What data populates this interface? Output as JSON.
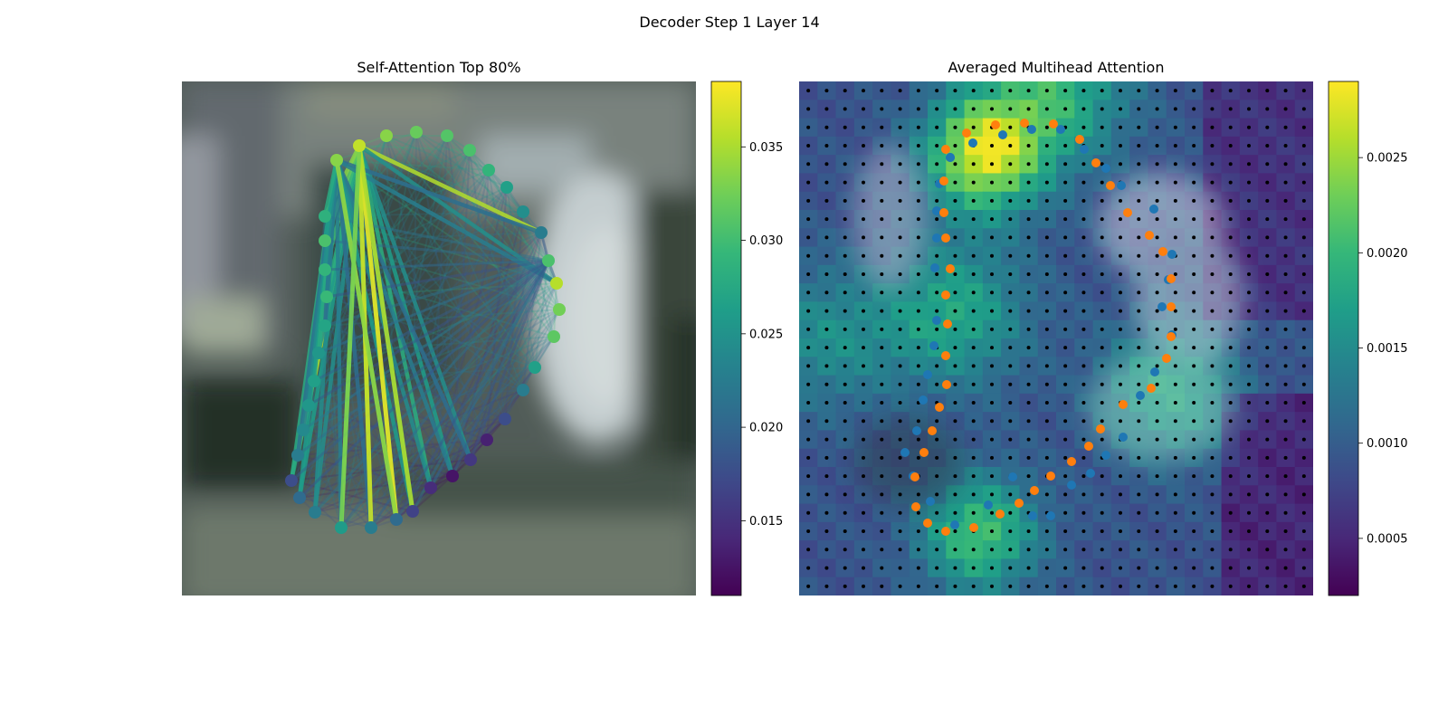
{
  "figure_title": "Decoder Step 1 Layer 14",
  "colormap": [
    "#440154",
    "#482878",
    "#3e4989",
    "#31688e",
    "#26828e",
    "#1f9e89",
    "#35b779",
    "#6ece58",
    "#b5de2b",
    "#fde725"
  ],
  "chart_data": [
    {
      "type": "scatter",
      "title": "Self-Attention Top 80%",
      "xlabel": "",
      "ylabel": "",
      "grid": false,
      "colorbar": {
        "range": [
          0.011,
          0.0385
        ],
        "ticks": [
          "0.015",
          "0.020",
          "0.025",
          "0.030",
          "0.035"
        ],
        "tick_values": [
          0.015,
          0.02,
          0.025,
          0.03,
          0.035
        ]
      },
      "points": {
        "x": [
          171,
          196,
          226,
          259,
          293,
          318,
          339,
          359,
          377,
          397,
          405,
          414,
          417,
          411,
          390,
          377,
          357,
          337,
          319,
          299,
          275,
          255,
          237,
          209,
          176,
          147,
          130,
          121,
          128,
          134,
          140,
          146,
          151,
          158,
          160,
          158,
          158,
          158
        ],
        "y": [
          87,
          71,
          60,
          56,
          60,
          76,
          98,
          117,
          144,
          167,
          198,
          223,
          252,
          282,
          316,
          341,
          373,
          396,
          418,
          436,
          449,
          475,
          484,
          493,
          493,
          476,
          460,
          441,
          413,
          385,
          358,
          331,
          300,
          270,
          238,
          208,
          176,
          149
        ],
        "value": [
          0.0335,
          0.036,
          0.0335,
          0.032,
          0.031,
          0.0305,
          0.029,
          0.0265,
          0.0245,
          0.0225,
          0.0305,
          0.0355,
          0.0325,
          0.0315,
          0.0265,
          0.0225,
          0.0175,
          0.0135,
          0.0155,
          0.0125,
          0.0145,
          0.0165,
          0.0205,
          0.0225,
          0.026,
          0.0225,
          0.0205,
          0.0175,
          0.0225,
          0.024,
          0.0255,
          0.0265,
          0.0255,
          0.027,
          0.0295,
          0.029,
          0.0305,
          0.0285
        ]
      },
      "attention_edges": {
        "strong_sources": [
          1,
          0,
          10
        ],
        "strong_targets": [
          18,
          19,
          20,
          21,
          22,
          23,
          24,
          25,
          26,
          27,
          28,
          29,
          30,
          31,
          32,
          33,
          34,
          35,
          36,
          37,
          9,
          11
        ]
      }
    },
    {
      "type": "heatmap",
      "title": "Averaged Multihead Attention",
      "xlabel": "",
      "ylabel": "",
      "grid": false,
      "grid_dots": {
        "cols": 28,
        "rows": 28
      },
      "colorbar": {
        "range": [
          0.0002,
          0.0029
        ],
        "ticks": [
          "0.0005",
          "0.0010",
          "0.0015",
          "0.0020",
          "0.0025"
        ],
        "tick_values": [
          0.0005,
          0.001,
          0.0015,
          0.002,
          0.0025
        ]
      },
      "series": [
        {
          "color": "#1f77b4",
          "x": [
            167,
            192,
            225,
            257,
            289,
            315,
            339,
            356,
            392,
            412,
            408,
            401,
            412,
            393,
            377,
            358,
            339,
            322,
            301,
            278,
            258,
            236,
            209,
            172,
            145,
            126,
            117,
            130,
            137,
            142,
            149,
            152,
            150,
            152,
            152,
            155,
            167
          ],
          "y": [
            84,
            68,
            59,
            53,
            53,
            75,
            96,
            115,
            141,
            191,
            219,
            249,
            280,
            321,
            347,
            393,
            413,
            433,
            446,
            480,
            480,
            437,
            468,
            490,
            464,
            436,
            410,
            386,
            352,
            324,
            292,
            264,
            206,
            173,
            143,
            113,
            84
          ]
        },
        {
          "color": "#ff7f0e",
          "x": [
            162,
            185,
            217,
            249,
            281,
            310,
            328,
            344,
            363,
            387,
            402,
            411,
            411,
            411,
            406,
            389,
            358,
            333,
            320,
            301,
            278,
            260,
            243,
            222,
            193,
            162,
            142,
            129,
            128,
            138,
            147,
            155,
            163,
            162,
            164,
            162,
            167,
            162,
            160,
            160
          ],
          "y": [
            75,
            57,
            48,
            46,
            47,
            64,
            90,
            115,
            145,
            170,
            188,
            218,
            249,
            282,
            306,
            339,
            357,
            384,
            403,
            420,
            436,
            452,
            466,
            478,
            493,
            497,
            488,
            470,
            437,
            410,
            386,
            360,
            335,
            303,
            268,
            236,
            207,
            173,
            145,
            110
          ]
        }
      ]
    }
  ]
}
